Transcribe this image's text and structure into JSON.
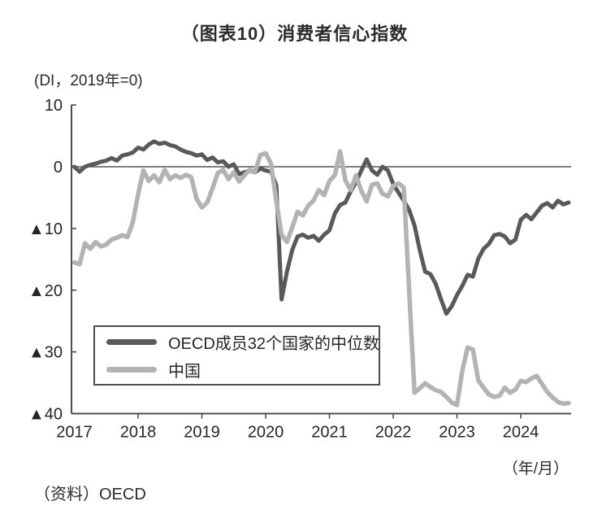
{
  "header": {
    "title": "（图表10）消费者信心指数"
  },
  "footer": {
    "x_axis_note": "（年/月）",
    "source": "（资料）OECD"
  },
  "chart_data": {
    "type": "line",
    "title": "（图表10）消费者信心指数",
    "unit_label": "(DI，2019年=0)",
    "xlabel": "（年/月）",
    "x_start": "2017-01",
    "x_end": "2024-10",
    "x_interval": "monthly",
    "x_tick_labels": [
      "2017",
      "2018",
      "2019",
      "2020",
      "2021",
      "2022",
      "2023",
      "2024"
    ],
    "y_ticks": [
      {
        "value": 10,
        "label": "10"
      },
      {
        "value": 0,
        "label": "0"
      },
      {
        "value": -10,
        "label": "▲10"
      },
      {
        "value": -20,
        "label": "▲20"
      },
      {
        "value": -30,
        "label": "▲30"
      },
      {
        "value": -40,
        "label": "▲40"
      }
    ],
    "ylim": [
      -40,
      10
    ],
    "zero_line": true,
    "grid": false,
    "legend_position": "inside-bottom-left",
    "axis_color": "#4d4d4d",
    "text_color": "#262626",
    "series": [
      {
        "name": "OECD成员32个国家的中位数",
        "color": "#595959",
        "values": [
          0.0,
          -0.8,
          0.0,
          0.3,
          0.5,
          0.8,
          1.0,
          1.4,
          1.0,
          1.8,
          2.0,
          2.3,
          3.1,
          2.8,
          3.6,
          4.1,
          3.7,
          3.9,
          3.5,
          3.3,
          2.8,
          2.4,
          2.2,
          1.8,
          2.0,
          1.1,
          1.5,
          0.7,
          0.9,
          0.0,
          0.4,
          -1.2,
          -0.9,
          -0.6,
          -0.9,
          -0.3,
          -0.6,
          -0.8,
          -3.0,
          -21.5,
          -17.0,
          -13.5,
          -11.3,
          -11.0,
          -11.5,
          -11.2,
          -12.0,
          -11.0,
          -10.3,
          -7.6,
          -6.2,
          -5.8,
          -4.0,
          -2.5,
          -0.6,
          1.2,
          -0.6,
          -1.3,
          0.0,
          -0.6,
          -2.8,
          -4.2,
          -5.5,
          -7.0,
          -9.5,
          -13.5,
          -17.0,
          -17.4,
          -19.0,
          -21.5,
          -23.8,
          -22.6,
          -20.8,
          -19.3,
          -17.5,
          -17.8,
          -14.9,
          -13.3,
          -12.5,
          -11.1,
          -10.9,
          -11.3,
          -12.4,
          -11.8,
          -8.6,
          -7.8,
          -8.5,
          -7.4,
          -6.3,
          -5.9,
          -6.6,
          -5.5,
          -6.1,
          -5.8
        ]
      },
      {
        "name": "中国",
        "color": "#b3b3b3",
        "values": [
          -15.5,
          -15.8,
          -12.4,
          -13.3,
          -12.2,
          -12.9,
          -12.6,
          -11.8,
          -11.5,
          -11.1,
          -11.4,
          -9.0,
          -4.5,
          -0.6,
          -2.3,
          -1.4,
          -2.5,
          -0.5,
          -2.0,
          -1.4,
          -1.8,
          -1.3,
          -1.7,
          -5.2,
          -6.6,
          -5.8,
          -3.5,
          -1.0,
          -0.5,
          -2.0,
          -0.9,
          -2.4,
          -1.4,
          -0.5,
          -0.8,
          1.9,
          2.2,
          0.5,
          -5.6,
          -11.0,
          -12.2,
          -9.8,
          -7.3,
          -7.9,
          -6.3,
          -5.5,
          -3.8,
          -4.6,
          -2.3,
          -1.4,
          2.5,
          -2.2,
          -3.8,
          -1.4,
          -3.9,
          -5.6,
          -2.9,
          -2.7,
          -4.4,
          -4.8,
          -3.1,
          -2.7,
          -3.4,
          -20.0,
          -36.6,
          -35.9,
          -35.1,
          -35.7,
          -36.2,
          -36.5,
          -37.3,
          -38.2,
          -38.6,
          -33.0,
          -29.3,
          -29.6,
          -34.6,
          -35.8,
          -36.9,
          -37.3,
          -37.1,
          -35.8,
          -36.6,
          -36.1,
          -34.7,
          -34.9,
          -34.3,
          -33.9,
          -35.2,
          -36.5,
          -37.4,
          -38.1,
          -38.4,
          -38.3
        ]
      }
    ]
  }
}
